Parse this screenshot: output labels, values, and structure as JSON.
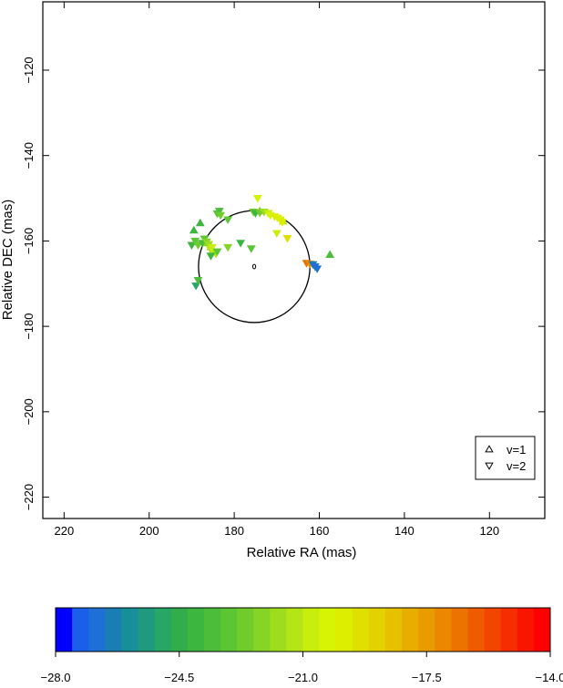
{
  "chart_data": {
    "type": "scatter",
    "xlabel": "Relative RA (mas)",
    "ylabel": "Relative DEC (mas)",
    "xlim": [
      225,
      107
    ],
    "ylim": [
      -225,
      -104
    ],
    "xticks": [
      220,
      200,
      180,
      160,
      140,
      120
    ],
    "yticks": [
      -120,
      -140,
      -160,
      -180,
      -200,
      -220
    ],
    "circle": {
      "center": [
        175.3,
        -166
      ],
      "radius": 13.1
    },
    "center_marker": [
      175.3,
      -166
    ],
    "legend": {
      "placement": "bottom-right",
      "entries": [
        {
          "label": "v=1",
          "marker": "triangle-up"
        },
        {
          "label": "v=2",
          "marker": "triangle-down"
        }
      ]
    },
    "colorbar": {
      "min": -28.0,
      "max": -14.0,
      "ticks": [
        "-28.0",
        "-24.5",
        "-21.0",
        "-17.5",
        "-14.0"
      ],
      "colors": [
        "#0000ff",
        "#1b5ee9",
        "#1e6fd6",
        "#1a7eb5",
        "#178f98",
        "#1f9a7e",
        "#27a665",
        "#32ad4b",
        "#3db640",
        "#4cbd3b",
        "#5cc534",
        "#70cc2d",
        "#86d526",
        "#9edc1e",
        "#b4e516",
        "#c8ee0e",
        "#d6f404",
        "#ddee00",
        "#e0e000",
        "#e3d200",
        "#e5c100",
        "#e7ae00",
        "#e99c00",
        "#eb8700",
        "#ed7300",
        "#ef5c00",
        "#f24500",
        "#f52d00",
        "#f91600",
        "#ff0000"
      ]
    },
    "series": [
      {
        "name": "v=1",
        "marker": "triangle-up",
        "points": [
          {
            "x": 189.5,
            "y": -157.5,
            "v": -24.0
          },
          {
            "x": 188.0,
            "y": -155.8,
            "v": -23.8
          },
          {
            "x": 189.0,
            "y": -160.2,
            "v": -23.5
          },
          {
            "x": 186.3,
            "y": -160.5,
            "v": -22.3
          },
          {
            "x": 185.5,
            "y": -161.4,
            "v": -21.5
          },
          {
            "x": 174.0,
            "y": -153.0,
            "v": -22.8
          },
          {
            "x": 168.5,
            "y": -155.4,
            "v": -21.4
          },
          {
            "x": 157.5,
            "y": -163.2,
            "v": -23.5
          }
        ]
      },
      {
        "name": "v=2",
        "marker": "triangle-down",
        "points": [
          {
            "x": 190.0,
            "y": -161.0,
            "v": -24.1
          },
          {
            "x": 189.2,
            "y": -160.0,
            "v": -23.3
          },
          {
            "x": 188.5,
            "y": -161.0,
            "v": -22.8
          },
          {
            "x": 187.5,
            "y": -160.5,
            "v": -23.7
          },
          {
            "x": 187.0,
            "y": -159.5,
            "v": -22.9
          },
          {
            "x": 186.5,
            "y": -160.2,
            "v": -22.2
          },
          {
            "x": 186.0,
            "y": -160.8,
            "v": -21.6
          },
          {
            "x": 185.6,
            "y": -162.0,
            "v": -21.3
          },
          {
            "x": 185.2,
            "y": -161.5,
            "v": -21.0
          },
          {
            "x": 184.8,
            "y": -162.6,
            "v": -20.8
          },
          {
            "x": 184.3,
            "y": -163.0,
            "v": -21.2
          },
          {
            "x": 184.0,
            "y": -162.5,
            "v": -23.3
          },
          {
            "x": 185.5,
            "y": -163.5,
            "v": -24.0
          },
          {
            "x": 181.5,
            "y": -161.5,
            "v": -22.0
          },
          {
            "x": 178.5,
            "y": -160.5,
            "v": -24.2
          },
          {
            "x": 176.0,
            "y": -161.8,
            "v": -23.0
          },
          {
            "x": 184.0,
            "y": -153.6,
            "v": -23.2
          },
          {
            "x": 183.5,
            "y": -153.0,
            "v": -23.7
          },
          {
            "x": 183.2,
            "y": -154.0,
            "v": -22.5
          },
          {
            "x": 181.5,
            "y": -155.0,
            "v": -23.0
          },
          {
            "x": 175.5,
            "y": -153.2,
            "v": -22.5
          },
          {
            "x": 175.0,
            "y": -153.5,
            "v": -23.8
          },
          {
            "x": 174.5,
            "y": -150.0,
            "v": -20.5
          },
          {
            "x": 174.0,
            "y": -153.4,
            "v": -22.8
          },
          {
            "x": 173.0,
            "y": -153.2,
            "v": -21.6
          },
          {
            "x": 172.0,
            "y": -153.5,
            "v": -20.6
          },
          {
            "x": 171.5,
            "y": -154.0,
            "v": -20.3
          },
          {
            "x": 170.5,
            "y": -154.3,
            "v": -20.0
          },
          {
            "x": 169.8,
            "y": -154.6,
            "v": -19.8
          },
          {
            "x": 169.2,
            "y": -155.0,
            "v": -20.2
          },
          {
            "x": 168.7,
            "y": -155.6,
            "v": -19.9
          },
          {
            "x": 170.0,
            "y": -158.2,
            "v": -20.8
          },
          {
            "x": 167.5,
            "y": -159.4,
            "v": -19.3
          },
          {
            "x": 189.0,
            "y": -170.5,
            "v": -24.8
          },
          {
            "x": 188.5,
            "y": -169.2,
            "v": -23.5
          },
          {
            "x": 163.0,
            "y": -165.2,
            "v": -16.5
          },
          {
            "x": 162.2,
            "y": -165.4,
            "v": -17.0
          },
          {
            "x": 161.5,
            "y": -165.5,
            "v": -26.2
          },
          {
            "x": 161.0,
            "y": -166.0,
            "v": -26.6
          },
          {
            "x": 160.5,
            "y": -166.5,
            "v": -26.8
          }
        ]
      }
    ]
  }
}
